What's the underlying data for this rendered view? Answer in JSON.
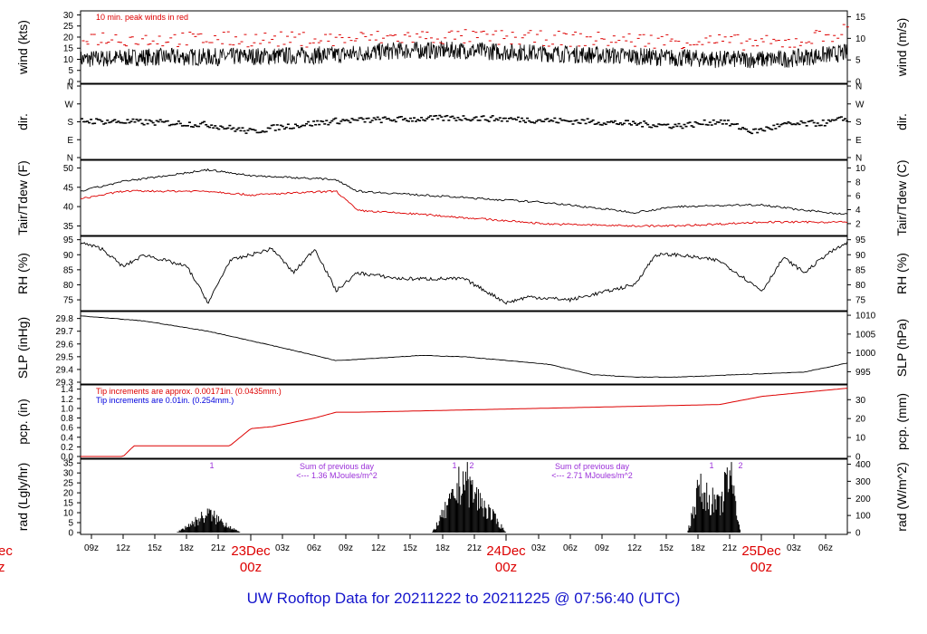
{
  "title": "UW Rooftop Data for 20211222  to  20211225 @ 07:56:40  (UTC)",
  "time_axis": {
    "hour_labels": [
      "09z",
      "12z",
      "15z",
      "18z",
      "21z",
      "03z",
      "06z",
      "09z",
      "12z",
      "15z",
      "18z",
      "21z",
      "03z",
      "06z",
      "09z",
      "12z",
      "15z",
      "18z",
      "21z",
      "03z",
      "06z"
    ],
    "day_labels": [
      {
        "date": "23Dec",
        "hour": "00z"
      },
      {
        "date": "24Dec",
        "hour": "00z"
      },
      {
        "date": "25Dec",
        "hour": "00z"
      }
    ],
    "cut_date": "ec",
    "cut_hour": "z"
  },
  "panels": {
    "wind": {
      "ylabel_left": "wind (kts)",
      "ylabel_right": "wind (m/s)",
      "left_ticks": [
        "30",
        "25",
        "20",
        "15",
        "10",
        "5",
        "0"
      ],
      "right_ticks": [
        "15",
        "10",
        "5",
        "0"
      ],
      "note": "10 min. peak winds in red"
    },
    "dir": {
      "ylabel_left": "dir.",
      "ylabel_right": "dir.",
      "ticks": [
        "N",
        "W",
        "S",
        "E",
        "N"
      ]
    },
    "temp": {
      "ylabel_left": "Tair/Tdew (F)",
      "ylabel_right": "Tair/Tdew (C)",
      "left_ticks": [
        "50",
        "45",
        "40",
        "35"
      ],
      "right_ticks": [
        "10",
        "8",
        "6",
        "4",
        "2"
      ]
    },
    "rh": {
      "ylabel_left": "RH (%)",
      "ylabel_right": "RH (%)",
      "left_ticks": [
        "95",
        "90",
        "85",
        "80",
        "75"
      ],
      "right_ticks": [
        "95",
        "90",
        "85",
        "80",
        "75"
      ]
    },
    "slp": {
      "ylabel_left": "SLP (inHg)",
      "ylabel_right": "SLP (hPa)",
      "left_ticks": [
        "29.8",
        "29.7",
        "29.6",
        "29.5",
        "29.4",
        "29.3"
      ],
      "right_ticks": [
        "1010",
        "1005",
        "1000",
        "995"
      ]
    },
    "pcp": {
      "ylabel_left": "pcp. (in)",
      "ylabel_right": "pcp. (mm)",
      "left_ticks": [
        "1.4",
        "1.2",
        "1.0",
        "0.8",
        "0.6",
        "0.4",
        "0.2",
        "0.0"
      ],
      "right_ticks": [
        "30",
        "20",
        "10",
        "0"
      ],
      "note_red": "Tip increments are approx. 0.00171in. (0.0435mm.)",
      "note_blue": "Tip increments are 0.01in. (0.254mm.)"
    },
    "rad": {
      "ylabel_left": "rad (Lgly/hr)",
      "ylabel_right": "rad (W/m^2)",
      "left_ticks": [
        "35",
        "30",
        "25",
        "20",
        "15",
        "10",
        "5",
        "0"
      ],
      "right_ticks": [
        "400",
        "300",
        "200",
        "100",
        "0"
      ],
      "sum_label": "Sum of previous day",
      "sum_values": [
        "<--- 1.36 MJoules/m^2",
        "<--- 2.71 MJoules/m^2"
      ],
      "markers": [
        "1",
        "1",
        "2",
        "1",
        "2"
      ]
    }
  },
  "colors": {
    "red": "#dd0000",
    "blue": "#0000dd",
    "purple": "#9b30d9",
    "black": "#000000"
  },
  "chart_data": {
    "type": "line",
    "x_unit": "hours UTC",
    "x_start": "2021-12-22 07:56",
    "x_end": "2021-12-25 07:56",
    "series": [
      {
        "name": "wind",
        "unit": "kts",
        "hours": [
          0,
          6,
          12,
          24,
          30,
          36,
          48,
          60,
          66,
          72
        ],
        "values": [
          10,
          11,
          11,
          12,
          14,
          14,
          12,
          10,
          10,
          13
        ]
      },
      {
        "name": "10 min. peak winds",
        "unit": "kts",
        "hours": [
          0,
          6,
          12,
          24,
          30,
          36,
          48,
          60,
          66,
          72
        ],
        "values": [
          20,
          19,
          19,
          19,
          20,
          20,
          19,
          18,
          17,
          23
        ]
      },
      {
        "name": "Tair",
        "unit": "F",
        "hours": [
          0,
          4,
          12,
          16,
          24,
          26,
          32,
          44,
          52,
          56,
          64,
          68,
          72
        ],
        "values": [
          44,
          46.5,
          49.5,
          48,
          47,
          44,
          43,
          41,
          38.5,
          40,
          40.5,
          39,
          38
        ]
      },
      {
        "name": "Tdew",
        "unit": "F",
        "hours": [
          0,
          4,
          12,
          16,
          24,
          26,
          32,
          44,
          52,
          56,
          64,
          68,
          72
        ],
        "values": [
          42,
          44,
          44,
          43,
          44,
          39,
          38,
          35.5,
          35,
          35,
          36,
          36,
          36
        ]
      },
      {
        "name": "RH",
        "unit": "%",
        "hours": [
          0,
          2,
          4,
          6,
          10,
          12,
          14,
          18,
          20,
          22,
          24,
          26,
          30,
          36,
          40,
          42,
          46,
          52,
          54,
          56,
          60,
          64,
          66,
          68,
          70,
          72
        ],
        "values": [
          94,
          92,
          86,
          90,
          86,
          74,
          88,
          92,
          84,
          92,
          78,
          84,
          82,
          82,
          74,
          76,
          75,
          80,
          90,
          90,
          88,
          78,
          89,
          84,
          90,
          94
        ]
      },
      {
        "name": "SLP",
        "unit": "inHg",
        "hours": [
          0,
          6,
          12,
          20,
          24,
          32,
          36,
          44,
          48,
          52,
          56,
          62,
          68,
          72
        ],
        "values": [
          29.82,
          29.78,
          29.7,
          29.55,
          29.47,
          29.51,
          29.5,
          29.44,
          29.36,
          29.34,
          29.34,
          29.36,
          29.38,
          29.45
        ]
      },
      {
        "name": "pcp",
        "unit": "in",
        "hours": [
          0,
          4,
          5,
          14,
          16,
          18,
          22,
          24,
          26,
          60,
          64,
          72
        ],
        "values": [
          0,
          0,
          0.22,
          0.22,
          0.58,
          0.62,
          0.8,
          0.92,
          0.92,
          1.08,
          1.25,
          1.42
        ]
      },
      {
        "name": "rad",
        "unit": "Lgly/hr",
        "hours": [
          9,
          12,
          15,
          33,
          35,
          36,
          37,
          40,
          57,
          58,
          60,
          61,
          62
        ],
        "values": [
          0,
          11,
          0,
          0,
          20,
          33,
          22,
          0,
          0,
          25,
          15,
          35,
          0
        ]
      }
    ]
  }
}
